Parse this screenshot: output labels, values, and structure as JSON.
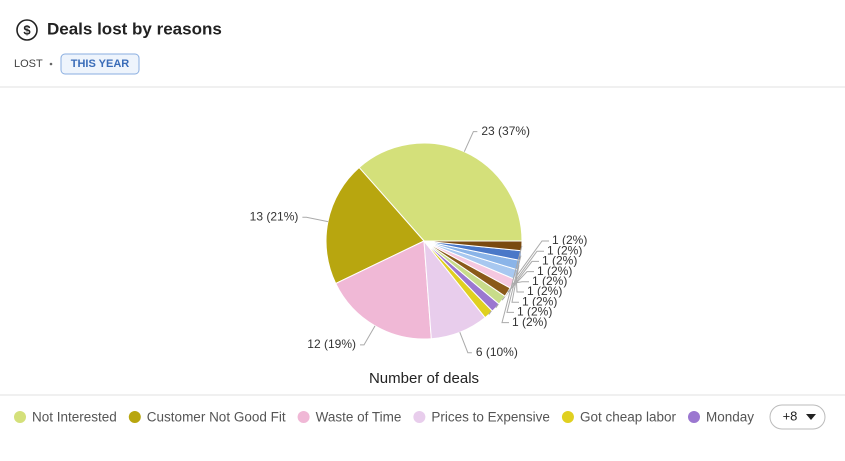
{
  "header": {
    "title": "Deals lost by reasons",
    "status": "LOST",
    "period": "THIS YEAR"
  },
  "chart_data": {
    "type": "pie",
    "categories": [
      "Not Interested",
      "Customer Not Good Fit",
      "Waste of Time",
      "Prices to Expensive",
      "Got cheap labor",
      "Monday",
      null,
      null,
      null,
      null,
      null,
      null,
      null
    ],
    "values": [
      23,
      13,
      12,
      6,
      1,
      1,
      1,
      1,
      1,
      1,
      1,
      1,
      1
    ],
    "value_labels": [
      "23 (37%)",
      "13 (21%)",
      "12 (19%)",
      "6 (10%)",
      "1 (2%)",
      "1 (2%)",
      "1 (2%)",
      "1 (2%)",
      "1 (2%)",
      "1 (2%)",
      "1 (2%)",
      "1 (2%)",
      "1 (2%)"
    ],
    "colors": [
      "#d4e07a",
      "#b8a60f",
      "#f0b8d6",
      "#e8cdec",
      "#e0d020",
      "#9b77d0",
      "#c8dc8a",
      "#8a5a1a",
      "#f5c8e0",
      "#a8c8f0",
      "#8ab4e8",
      "#4a78c8",
      "#7a4a10"
    ],
    "x_label": "Number of deals",
    "legend_more": "+8"
  }
}
